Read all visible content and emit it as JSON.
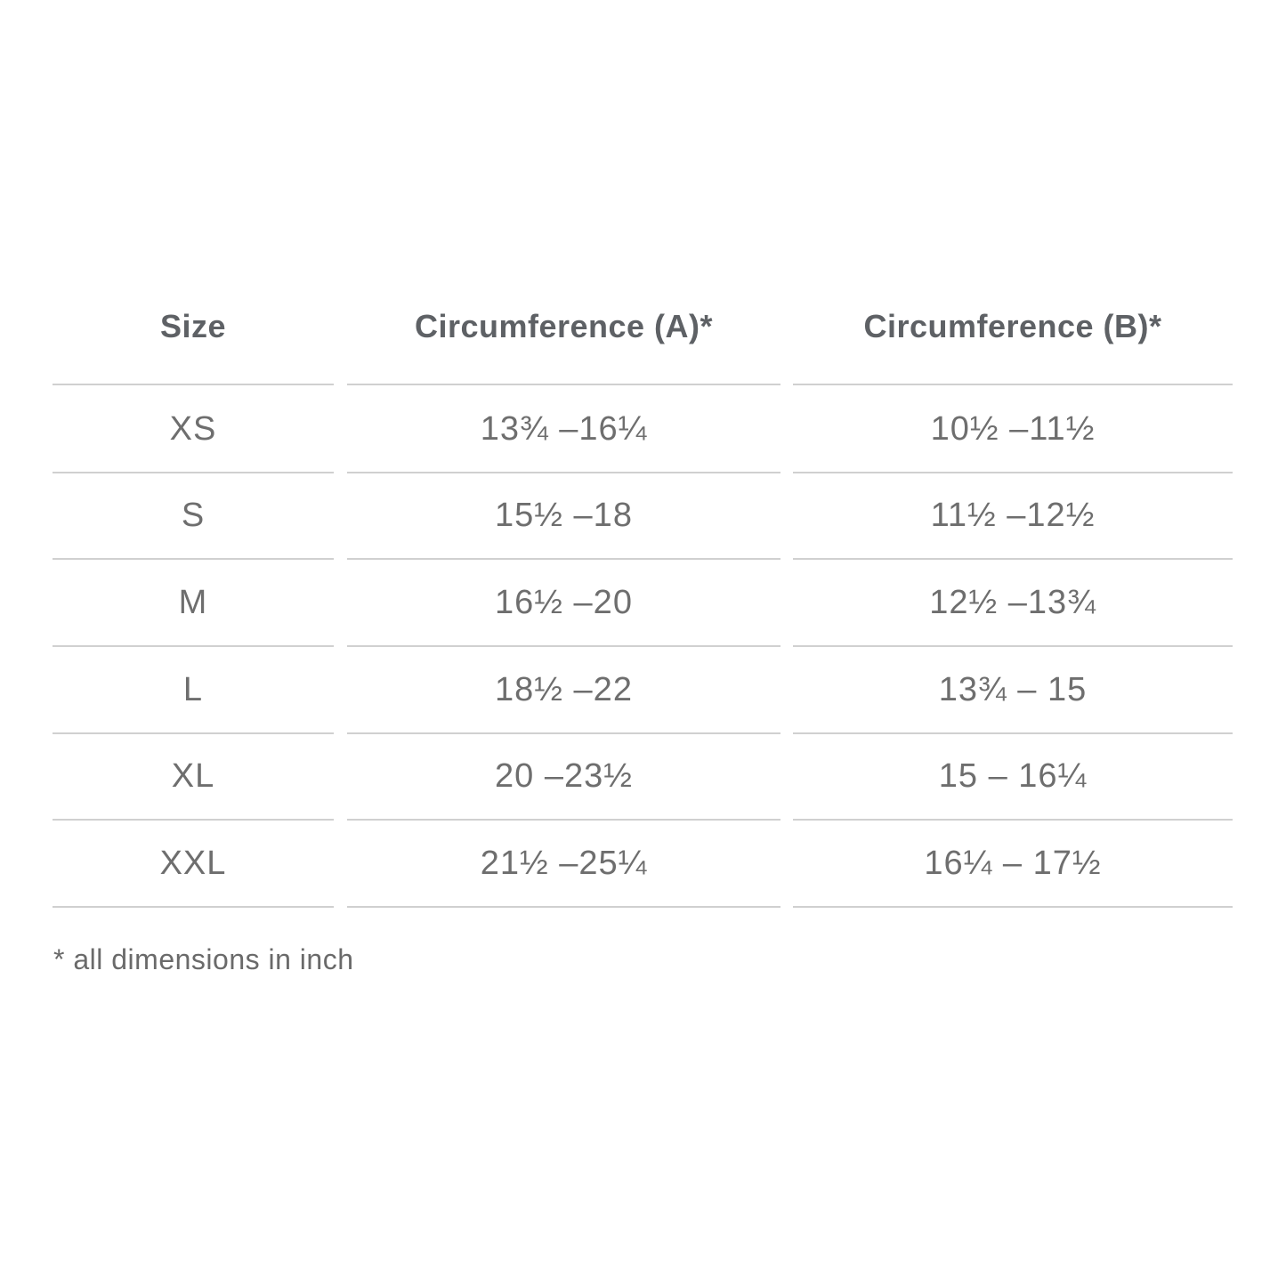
{
  "table": {
    "headers": [
      "Size",
      "Circumference (A)*",
      "Circumference (B)*"
    ],
    "rows": [
      [
        "XS",
        "13¾ –16¼",
        "10½ –11½"
      ],
      [
        "S",
        "15½ –18",
        "11½ –12½"
      ],
      [
        "M",
        "16½ –20",
        "12½ –13¾"
      ],
      [
        "L",
        "18½ –22",
        "13¾ – 15"
      ],
      [
        "XL",
        "20 –23½",
        "15 – 16¼"
      ],
      [
        "XXL",
        "21½ –25¼",
        "16¼ – 17½"
      ]
    ]
  },
  "footnote": "* all dimensions in inch",
  "colors": {
    "text": "#6e6e6e",
    "header": "#5e6165",
    "rule": "#d0d0d0"
  }
}
